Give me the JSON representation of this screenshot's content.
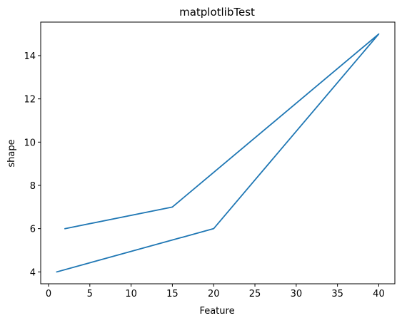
{
  "chart_data": {
    "type": "line",
    "title": "matplotlibTest",
    "xlabel": "Feature",
    "ylabel": "shape",
    "xlim": [
      -0.95,
      41.95
    ],
    "ylim": [
      3.45,
      15.55
    ],
    "xticks": [
      0,
      5,
      10,
      15,
      20,
      25,
      30,
      35,
      40
    ],
    "yticks": [
      4,
      6,
      8,
      10,
      12,
      14
    ],
    "grid": false,
    "series": [
      {
        "x": [
          1,
          20,
          40,
          15,
          2
        ],
        "y": [
          4,
          6,
          15,
          7,
          6
        ],
        "color": "#1f77b4"
      }
    ]
  }
}
